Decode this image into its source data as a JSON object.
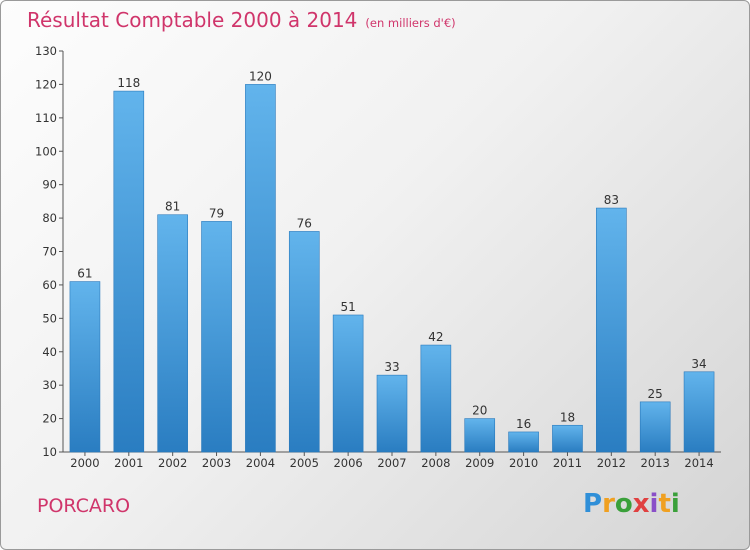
{
  "header": {
    "title": "Résultat Comptable 2000 à 2014",
    "subtitle": "(en milliers d'€)"
  },
  "footer": {
    "commune": "PORCARO",
    "logo_text": "Proxiti"
  },
  "colors": {
    "title": "#d0356b",
    "bar_top": "#62b4ec",
    "bar_bottom": "#2a7dc1",
    "axis": "#555555"
  },
  "chart_data": {
    "type": "bar",
    "title": "Résultat Comptable 2000 à 2014",
    "subtitle": "(en milliers d'€)",
    "xlabel": "",
    "ylabel": "",
    "ylim": [
      10,
      130
    ],
    "yticks": [
      10,
      20,
      30,
      40,
      50,
      60,
      70,
      80,
      90,
      100,
      110,
      120,
      130
    ],
    "grid": false,
    "categories": [
      "2000",
      "2001",
      "2002",
      "2003",
      "2004",
      "2005",
      "2006",
      "2007",
      "2008",
      "2009",
      "2010",
      "2011",
      "2012",
      "2013",
      "2014"
    ],
    "values": [
      61,
      118,
      81,
      79,
      120,
      76,
      51,
      33,
      42,
      20,
      16,
      18,
      83,
      25,
      34
    ]
  }
}
